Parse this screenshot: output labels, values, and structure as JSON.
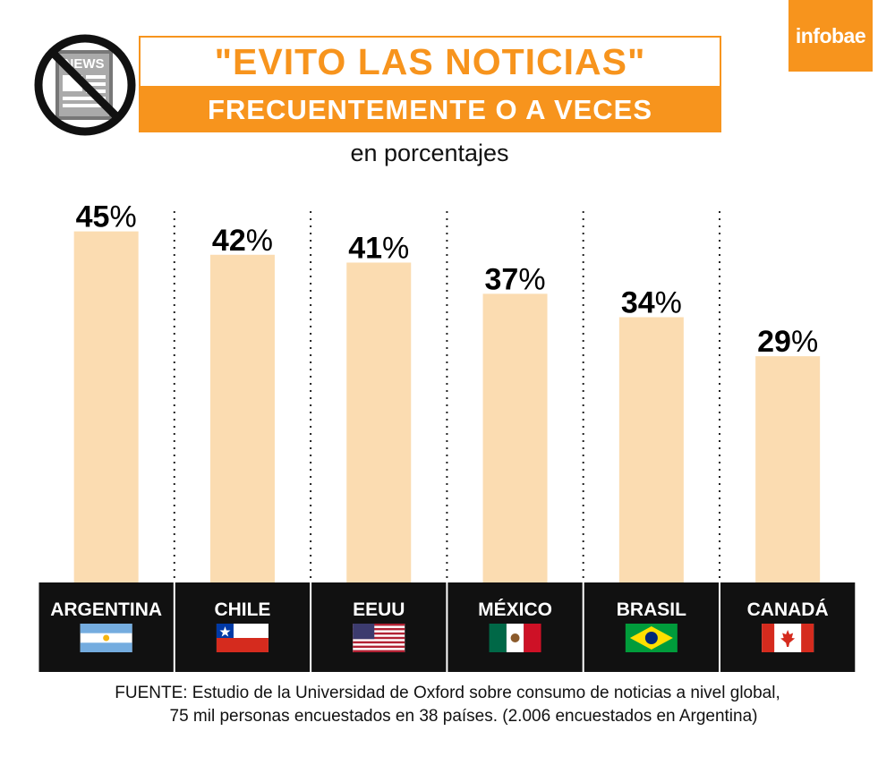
{
  "header": {
    "title_line1": "\"EVITO LAS NOTICIAS\"",
    "title_line2": "FRECUENTEMENTE O A VECES",
    "subtitle": "en porcentajes",
    "icon_text": "NEWS"
  },
  "logo": {
    "text": "infobae"
  },
  "colors": {
    "accent": "#f7941d",
    "bar": "#fbdcb1",
    "label_box": "#111111",
    "label_text": "#ffffff",
    "value_text": "#000000"
  },
  "chart_data": {
    "type": "bar",
    "categories": [
      "ARGENTINA",
      "CHILE",
      "EEUU",
      "MÉXICO",
      "BRASIL",
      "CANADÁ"
    ],
    "values": [
      45,
      42,
      41,
      37,
      34,
      29
    ],
    "value_suffix": "%",
    "flag_icons": [
      "argentina-flag-icon",
      "chile-flag-icon",
      "usa-flag-icon",
      "mexico-flag-icon",
      "brazil-flag-icon",
      "canada-flag-icon"
    ],
    "ylim": [
      0,
      50
    ],
    "grid": false,
    "legend": "none"
  },
  "footer": {
    "source_line1": "FUENTE: Estudio de la Universidad de Oxford sobre consumo de noticias a nivel global,",
    "source_line2": "75 mil personas encuestados en 38 países. (2.006 encuestados en Argentina)"
  }
}
